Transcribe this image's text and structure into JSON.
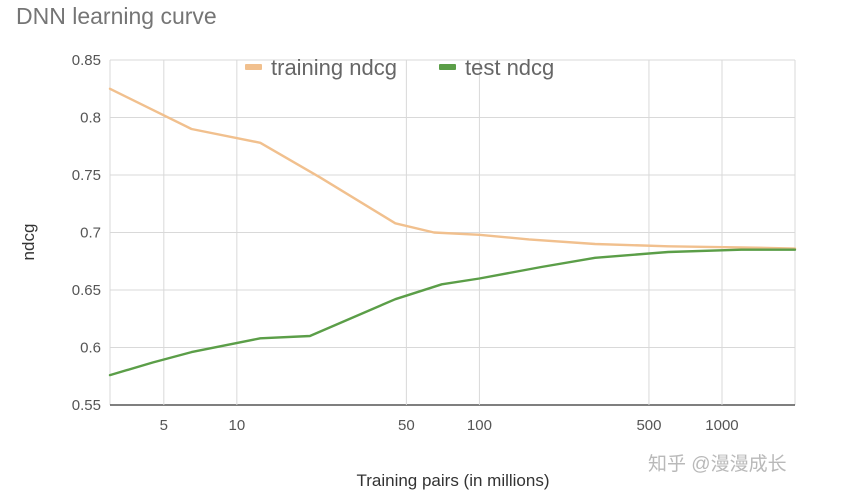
{
  "chart_data": {
    "type": "line",
    "title": "DNN learning curve",
    "xlabel": "Training pairs (in millions)",
    "ylabel": "ndcg",
    "x_scale": "log",
    "x_range": [
      3,
      2000
    ],
    "ylim": [
      0.55,
      0.85
    ],
    "x_ticks": [
      5,
      10,
      50,
      100,
      500,
      1000
    ],
    "x_tick_labels": [
      "5",
      "10",
      "50",
      "100",
      "500",
      "1000"
    ],
    "y_ticks": [
      0.55,
      0.6,
      0.65,
      0.7,
      0.75,
      0.8,
      0.85
    ],
    "y_tick_labels": [
      "0.55",
      "0.6",
      "0.65",
      "0.7",
      "0.75",
      "0.8",
      "0.85"
    ],
    "grid": true,
    "legend_position": "top",
    "series": [
      {
        "name": "training ndcg",
        "color": "#f1c08e",
        "points": [
          {
            "x": 3,
            "y": 0.825
          },
          {
            "x": 6.5,
            "y": 0.79
          },
          {
            "x": 12.5,
            "y": 0.778
          },
          {
            "x": 22,
            "y": 0.748
          },
          {
            "x": 45,
            "y": 0.708
          },
          {
            "x": 65,
            "y": 0.7
          },
          {
            "x": 100,
            "y": 0.698
          },
          {
            "x": 160,
            "y": 0.694
          },
          {
            "x": 300,
            "y": 0.69
          },
          {
            "x": 600,
            "y": 0.688
          },
          {
            "x": 1200,
            "y": 0.687
          },
          {
            "x": 2000,
            "y": 0.686
          }
        ]
      },
      {
        "name": "test ndcg",
        "color": "#5b9e48",
        "points": [
          {
            "x": 3,
            "y": 0.576
          },
          {
            "x": 4.5,
            "y": 0.587
          },
          {
            "x": 6.5,
            "y": 0.596
          },
          {
            "x": 12.5,
            "y": 0.608
          },
          {
            "x": 20,
            "y": 0.61
          },
          {
            "x": 45,
            "y": 0.642
          },
          {
            "x": 70,
            "y": 0.655
          },
          {
            "x": 100,
            "y": 0.66
          },
          {
            "x": 180,
            "y": 0.67
          },
          {
            "x": 300,
            "y": 0.678
          },
          {
            "x": 600,
            "y": 0.683
          },
          {
            "x": 1200,
            "y": 0.685
          },
          {
            "x": 2000,
            "y": 0.685
          }
        ]
      }
    ]
  },
  "watermark_text": "知乎 @漫漫成长"
}
